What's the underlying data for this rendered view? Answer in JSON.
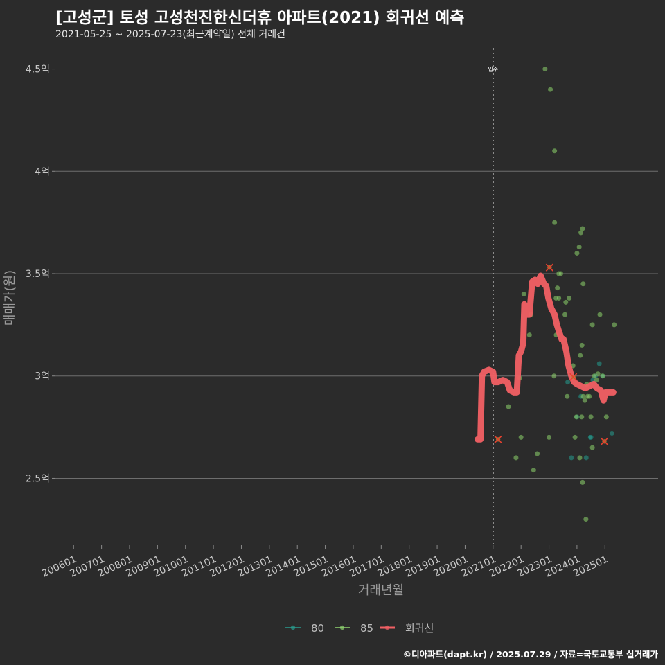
{
  "title": "[고성군] 토성 고성천진한신더휴 아파트(2021) 회귀선 예측",
  "subtitle": "2021-05-25 ~ 2025-07-23(최근계약일) 전체 거래건",
  "footer": "©디아파트(dapt.kr) / 2025.07.29 / 자료=국토교통부 실거래가",
  "colors": {
    "background": "#2b2b2b",
    "grid": "#6e6e6e",
    "series_80": "#2a9d8f",
    "series_85": "#90d470",
    "regression": "#f26064",
    "marker_x": "#e8402f"
  },
  "chart_data": {
    "type": "scatter",
    "title": "[고성군] 토성 고성천진한신더휴 아파트(2021) 회귀선 예측",
    "xlabel": "거래년월",
    "ylabel": "매매가(원)",
    "x_range": [
      2005.35,
      2026.9
    ],
    "y_range": [
      2.18,
      4.6
    ],
    "y_ticks": [
      {
        "value": 2.5,
        "label": "2.5억"
      },
      {
        "value": 3.0,
        "label": "3억"
      },
      {
        "value": 3.5,
        "label": "3.5억"
      },
      {
        "value": 4.0,
        "label": "4억"
      },
      {
        "value": 4.5,
        "label": "4.5억"
      }
    ],
    "x_ticks": [
      {
        "value": 2006.0,
        "label": "200601"
      },
      {
        "value": 2007.0,
        "label": "200701"
      },
      {
        "value": 2008.0,
        "label": "200801"
      },
      {
        "value": 2009.0,
        "label": "200901"
      },
      {
        "value": 2010.0,
        "label": "201001"
      },
      {
        "value": 2011.0,
        "label": "201101"
      },
      {
        "value": 2012.0,
        "label": "201201"
      },
      {
        "value": 2013.0,
        "label": "201301"
      },
      {
        "value": 2014.0,
        "label": "201401"
      },
      {
        "value": 2015.0,
        "label": "201501"
      },
      {
        "value": 2016.0,
        "label": "201601"
      },
      {
        "value": 2017.0,
        "label": "201701"
      },
      {
        "value": 2018.0,
        "label": "201801"
      },
      {
        "value": 2019.0,
        "label": "201901"
      },
      {
        "value": 2020.0,
        "label": "202001"
      },
      {
        "value": 2021.0,
        "label": "202101"
      },
      {
        "value": 2022.0,
        "label": "202201"
      },
      {
        "value": 2023.0,
        "label": "202301"
      },
      {
        "value": 2024.0,
        "label": "202401"
      },
      {
        "value": 2025.0,
        "label": "202501"
      }
    ],
    "vline": {
      "x": 2021.0,
      "label": "입주"
    },
    "legend": {
      "position": "bottom",
      "items": [
        {
          "name": "80",
          "color": "#2a9d8f",
          "kind": "point"
        },
        {
          "name": "85",
          "color": "#90d470",
          "kind": "point"
        },
        {
          "name": "회귀선",
          "color": "#f26064",
          "kind": "line"
        }
      ]
    },
    "series": [
      {
        "name": "80",
        "points": [
          [
            2024.0,
            2.8
          ],
          [
            2024.5,
            2.7
          ],
          [
            2024.57,
            2.98
          ],
          [
            2024.66,
            3.0
          ],
          [
            2024.8,
            3.06
          ],
          [
            2024.92,
            3.0
          ],
          [
            2025.25,
            2.72
          ],
          [
            2023.67,
            2.97
          ],
          [
            2024.14,
            2.9
          ],
          [
            2024.33,
            2.6
          ],
          [
            2023.8,
            2.6
          ],
          [
            2024.48,
            2.7
          ]
        ]
      },
      {
        "name": "85",
        "points": [
          [
            2021.55,
            2.85
          ],
          [
            2021.82,
            2.6
          ],
          [
            2022.0,
            2.7
          ],
          [
            2021.95,
            2.99
          ],
          [
            2022.1,
            3.4
          ],
          [
            2022.3,
            3.2
          ],
          [
            2022.58,
            2.62
          ],
          [
            2022.86,
            4.5
          ],
          [
            2023.05,
            4.4
          ],
          [
            2023.2,
            4.1
          ],
          [
            2023.2,
            3.75
          ],
          [
            2023.35,
            3.5
          ],
          [
            2023.42,
            3.5
          ],
          [
            2023.3,
            3.43
          ],
          [
            2023.25,
            3.38
          ],
          [
            2023.35,
            3.38
          ],
          [
            2023.26,
            3.2
          ],
          [
            2023.18,
            3.0
          ],
          [
            2023.0,
            2.7
          ],
          [
            2022.45,
            2.54
          ],
          [
            2022.35,
            3.3
          ],
          [
            2023.57,
            3.3
          ],
          [
            2023.6,
            3.36
          ],
          [
            2023.72,
            3.38
          ],
          [
            2023.65,
            2.9
          ],
          [
            2023.83,
            2.99
          ],
          [
            2023.86,
            3.05
          ],
          [
            2023.93,
            2.7
          ],
          [
            2023.98,
            2.8
          ],
          [
            2024.0,
            3.6
          ],
          [
            2024.08,
            3.63
          ],
          [
            2024.14,
            3.7
          ],
          [
            2024.2,
            3.72
          ],
          [
            2024.12,
            3.1
          ],
          [
            2024.18,
            3.15
          ],
          [
            2024.22,
            3.45
          ],
          [
            2024.1,
            2.6
          ],
          [
            2024.17,
            2.8
          ],
          [
            2024.2,
            2.48
          ],
          [
            2024.22,
            2.9
          ],
          [
            2024.28,
            2.88
          ],
          [
            2024.32,
            2.3
          ],
          [
            2024.38,
            2.9
          ],
          [
            2024.44,
            2.9
          ],
          [
            2024.5,
            2.8
          ],
          [
            2024.55,
            3.25
          ],
          [
            2024.55,
            2.65
          ],
          [
            2024.7,
            2.98
          ],
          [
            2024.82,
            3.3
          ],
          [
            2024.92,
            3.0
          ],
          [
            2025.05,
            2.8
          ],
          [
            2025.33,
            3.25
          ],
          [
            2024.35,
            2.96
          ],
          [
            2024.62,
            3.0
          ],
          [
            2024.75,
            3.01
          ]
        ]
      }
    ],
    "regression": {
      "name": "회귀선",
      "points": [
        [
          2020.45,
          2.69
        ],
        [
          2020.55,
          2.69
        ],
        [
          2020.6,
          3.0
        ],
        [
          2020.68,
          3.02
        ],
        [
          2020.85,
          3.03
        ],
        [
          2021.0,
          3.02
        ],
        [
          2021.05,
          2.97
        ],
        [
          2021.18,
          2.97
        ],
        [
          2021.35,
          2.98
        ],
        [
          2021.5,
          2.97
        ],
        [
          2021.6,
          2.93
        ],
        [
          2021.75,
          2.92
        ],
        [
          2021.85,
          2.92
        ],
        [
          2021.92,
          3.1
        ],
        [
          2022.0,
          3.12
        ],
        [
          2022.08,
          3.16
        ],
        [
          2022.12,
          3.35
        ],
        [
          2022.2,
          3.3
        ],
        [
          2022.3,
          3.3
        ],
        [
          2022.4,
          3.46
        ],
        [
          2022.5,
          3.47
        ],
        [
          2022.6,
          3.45
        ],
        [
          2022.7,
          3.49
        ],
        [
          2022.82,
          3.45
        ],
        [
          2022.9,
          3.44
        ],
        [
          2022.98,
          3.38
        ],
        [
          2023.08,
          3.33
        ],
        [
          2023.2,
          3.3
        ],
        [
          2023.28,
          3.25
        ],
        [
          2023.35,
          3.22
        ],
        [
          2023.45,
          3.18
        ],
        [
          2023.52,
          3.18
        ],
        [
          2023.62,
          3.12
        ],
        [
          2023.7,
          3.05
        ],
        [
          2023.8,
          3.0
        ],
        [
          2023.9,
          2.97
        ],
        [
          2024.0,
          2.96
        ],
        [
          2024.15,
          2.95
        ],
        [
          2024.3,
          2.94
        ],
        [
          2024.45,
          2.95
        ],
        [
          2024.6,
          2.96
        ],
        [
          2024.72,
          2.94
        ],
        [
          2024.85,
          2.93
        ],
        [
          2024.95,
          2.88
        ],
        [
          2025.02,
          2.92
        ],
        [
          2025.1,
          2.92
        ],
        [
          2025.2,
          2.92
        ],
        [
          2025.3,
          2.92
        ]
      ]
    },
    "x_markers": [
      [
        2021.18,
        2.69
      ],
      [
        2023.02,
        3.53
      ],
      [
        2023.87,
        2.995
      ],
      [
        2024.98,
        2.68
      ]
    ]
  }
}
